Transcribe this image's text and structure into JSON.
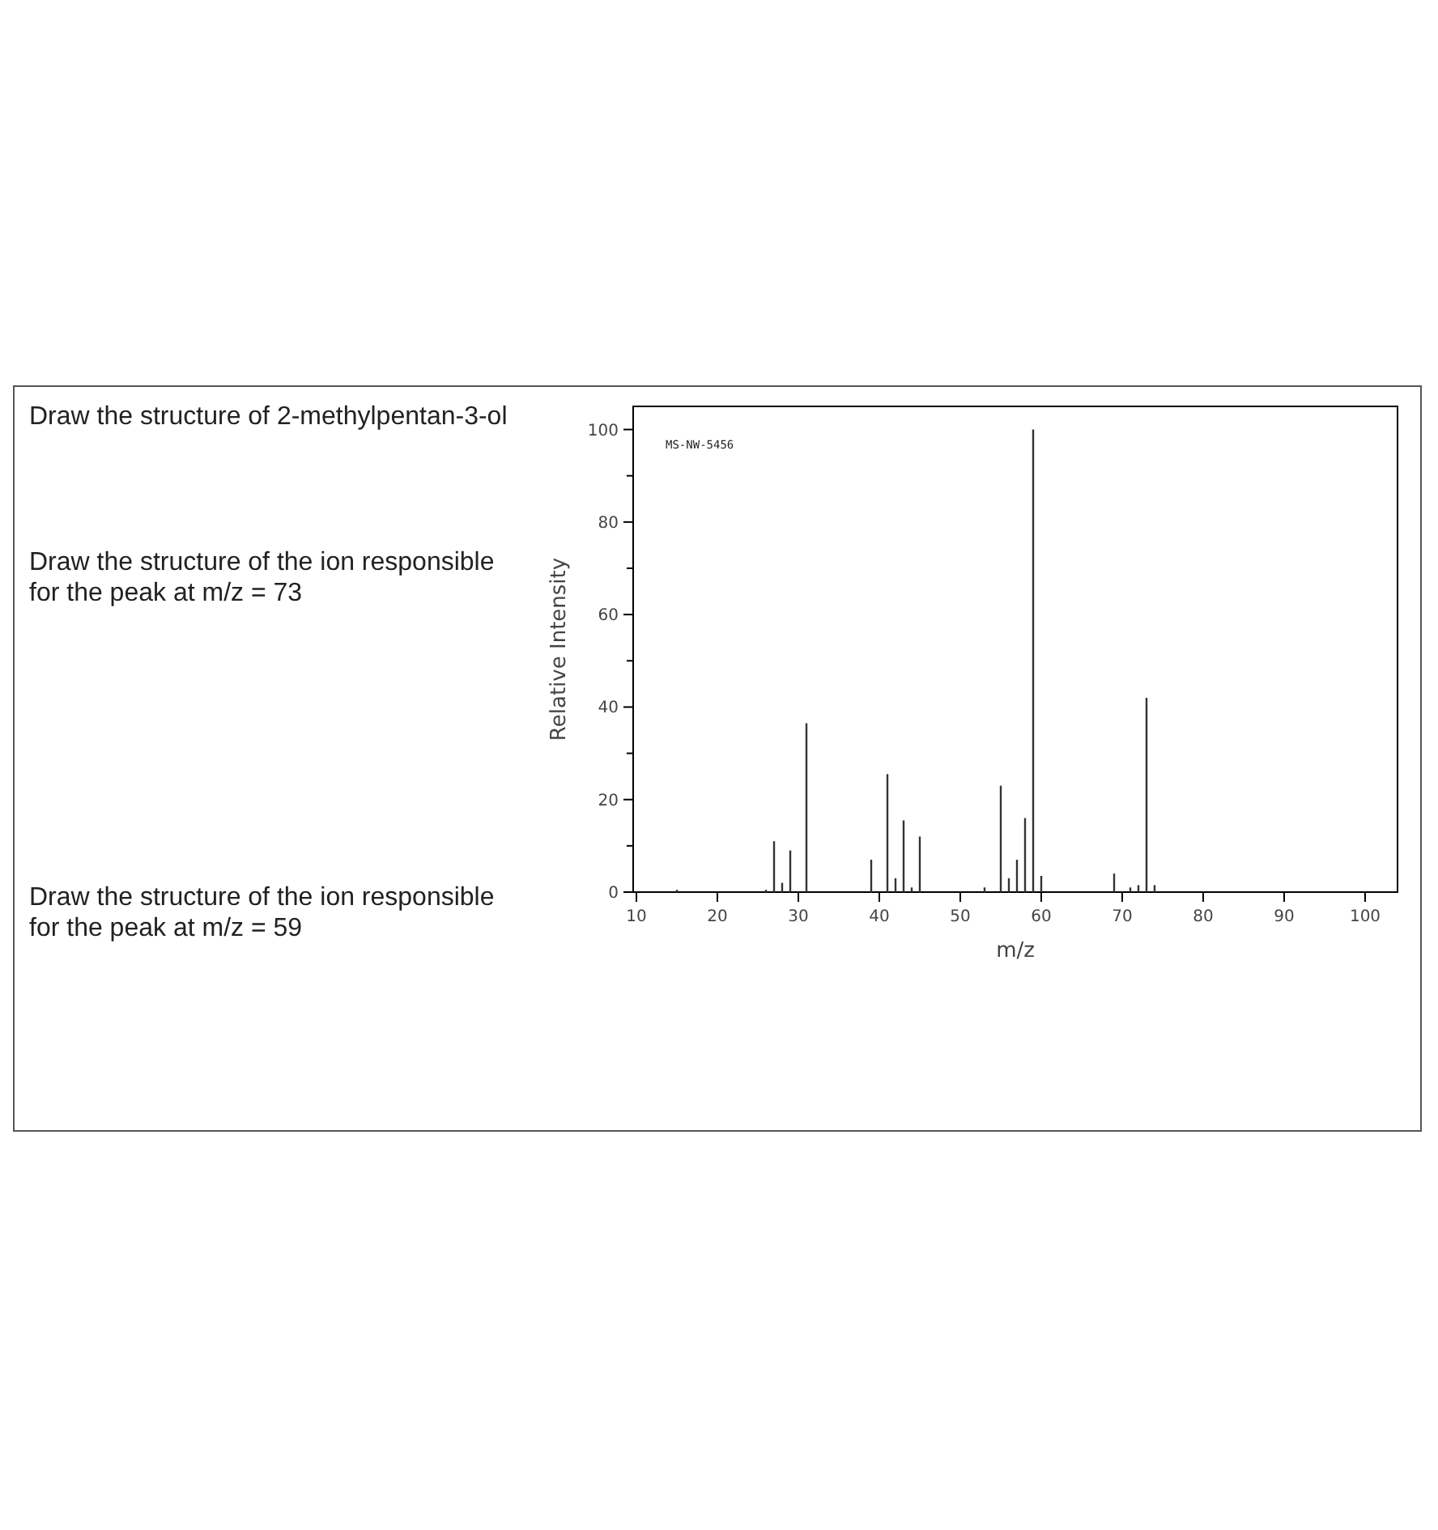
{
  "chart_data": {
    "type": "bar",
    "xlabel": "m/z",
    "ylabel": "Relative Intensity",
    "x": [
      15,
      26,
      27,
      28,
      29,
      31,
      39,
      41,
      42,
      43,
      44,
      45,
      53,
      55,
      56,
      57,
      58,
      59,
      60,
      69,
      71,
      72,
      73,
      74
    ],
    "series": [
      {
        "color": "#333333",
        "values": [
          0.5,
          0.5,
          11,
          2,
          9,
          36.5,
          7,
          25.5,
          3,
          15.5,
          1,
          12,
          1,
          23,
          3,
          7,
          16,
          100,
          3.5,
          4,
          1,
          1.5,
          42,
          1.5
        ]
      }
    ],
    "xlim": [
      9.6,
      104
    ],
    "ylim": [
      0,
      105
    ],
    "xticks": [
      10,
      20,
      30,
      40,
      50,
      60,
      70,
      80,
      90,
      100
    ],
    "yticks": [
      0,
      {
        "value": 10,
        "label": null
      },
      20,
      {
        "value": 30,
        "label": null
      },
      40,
      {
        "value": 50,
        "label": null
      },
      60,
      {
        "value": 70,
        "label": null
      },
      80,
      {
        "value": 90,
        "label": null
      },
      100
    ],
    "annotations": [
      "Draw the structure of 2-methylpentan-3-ol",
      "Draw the structure of the ion responsible\nfor the peak at m/z = 73",
      "Draw the structure of the ion responsible\nfor the peak at m/z = 59",
      "MS-NW-5456"
    ]
  }
}
